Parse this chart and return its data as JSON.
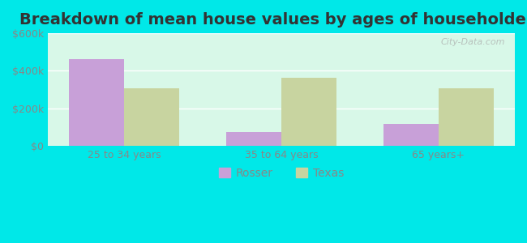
{
  "title": "Breakdown of mean house values by ages of householders",
  "categories": [
    "25 to 34 years",
    "35 to 64 years",
    "65 years+"
  ],
  "rosser_values": [
    462000,
    75000,
    118000
  ],
  "texas_values": [
    305000,
    365000,
    305000
  ],
  "ylim": [
    0,
    600000
  ],
  "yticks": [
    0,
    200000,
    400000,
    600000
  ],
  "ytick_labels": [
    "$0",
    "$200k",
    "$400k",
    "$600k"
  ],
  "rosser_color": "#c8a0d8",
  "texas_color": "#c8d4a0",
  "background_color": "#d8f8e8",
  "outer_background": "#00e8e8",
  "bar_width": 0.35,
  "legend_labels": [
    "Rosser",
    "Texas"
  ],
  "watermark": "City-Data.com",
  "title_fontsize": 14,
  "tick_fontsize": 9,
  "legend_fontsize": 10
}
